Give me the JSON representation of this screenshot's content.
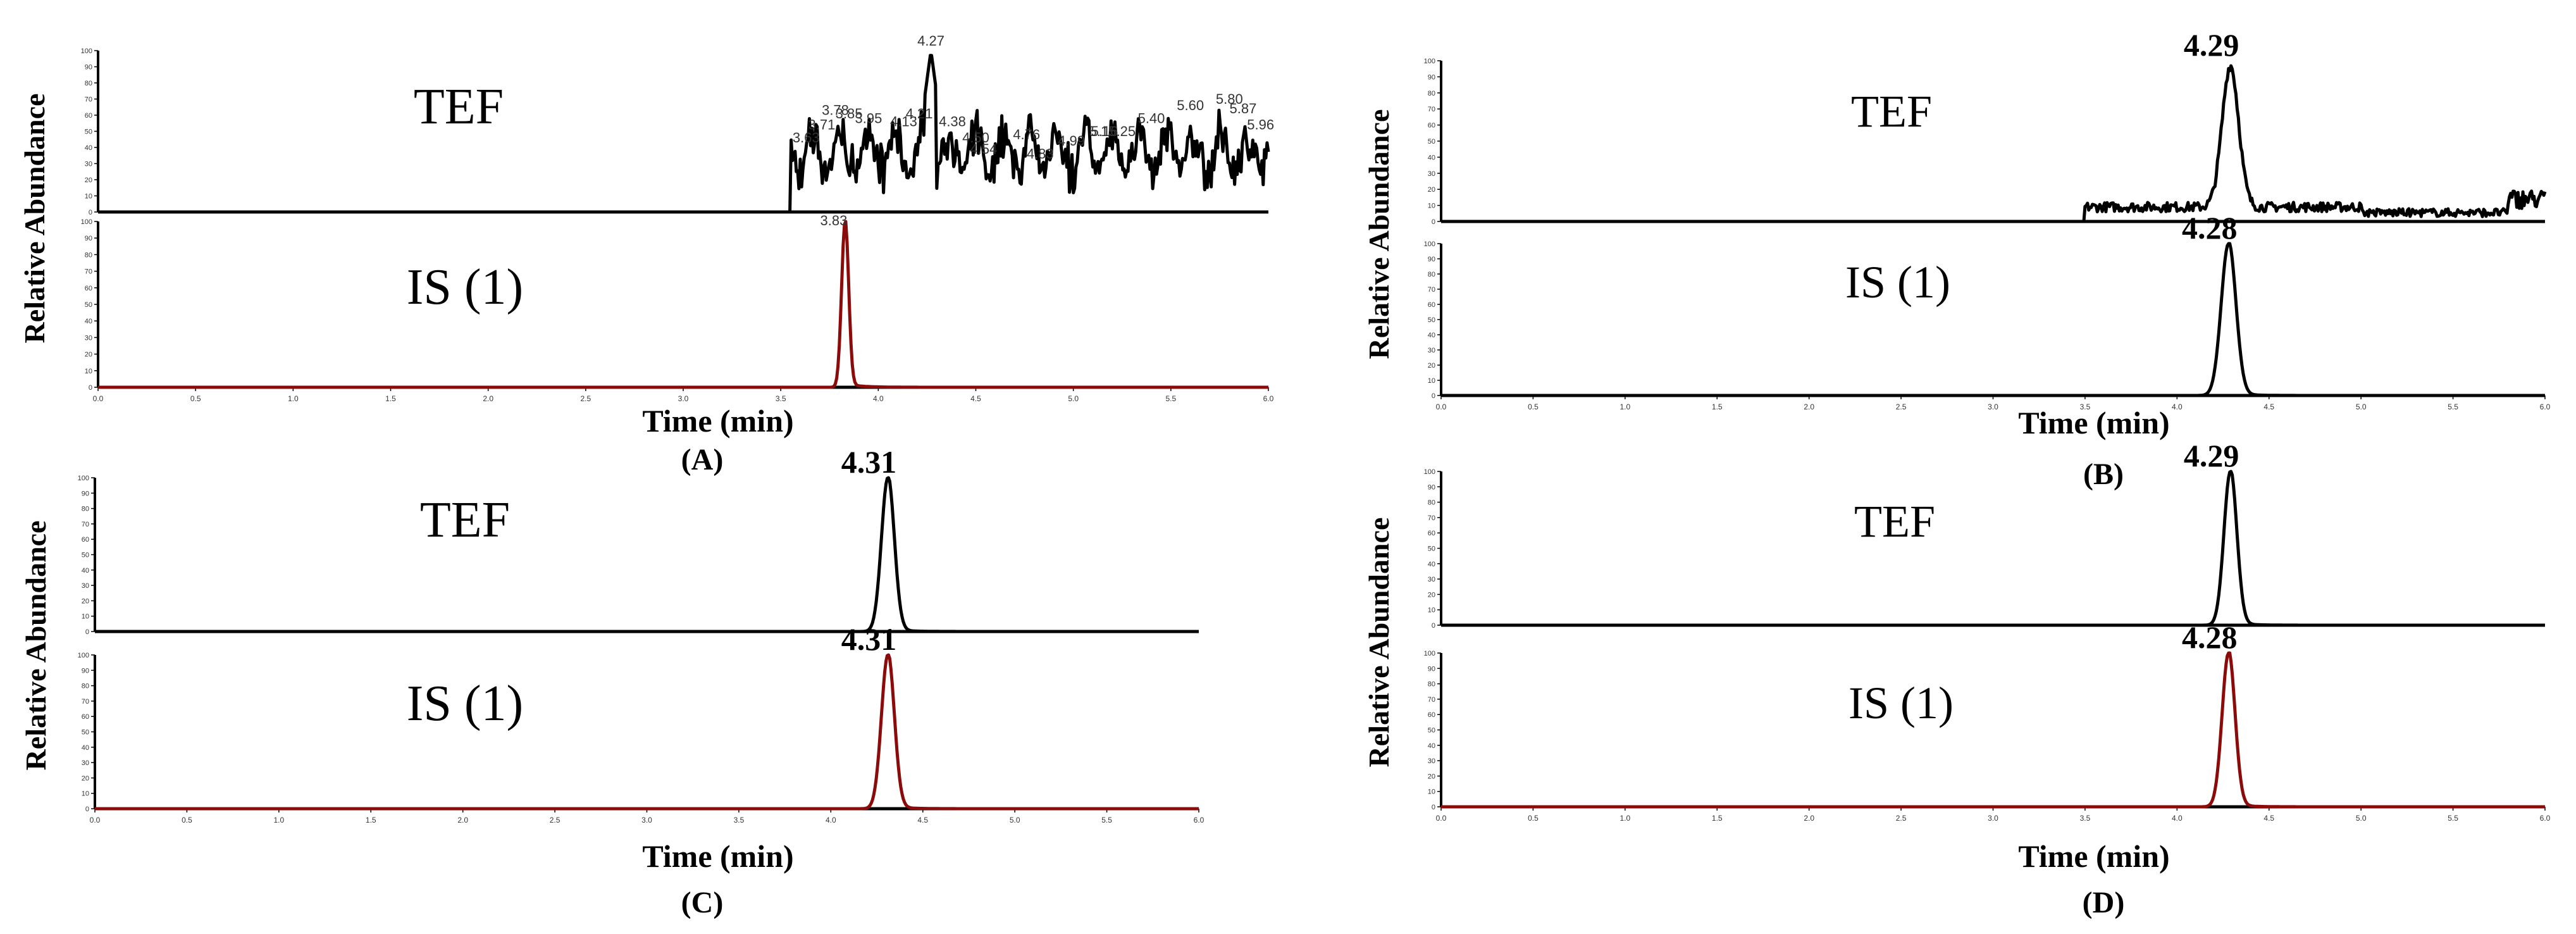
{
  "figure_type": "LC-MS/MS chromatograms",
  "colors": {
    "analyte_trace": "#000000",
    "is_trace": "#8b0a0a",
    "axis": "#000000",
    "baseline_marker": "#3344cc"
  },
  "chart_data": [
    {
      "panel_label": "(A)",
      "type": "line",
      "xlabel": "Time (min)",
      "ylabel": "Relative Abundance",
      "xlim": [
        0,
        6
      ],
      "ylim": [
        0,
        100
      ],
      "x_ticks": [
        "0.0",
        "0.5",
        "1.0",
        "1.5",
        "2.0",
        "2.5",
        "3.0",
        "3.5",
        "4.0",
        "4.5",
        "5.0",
        "5.5",
        "6.0"
      ],
      "y_ticks": [
        "0",
        "10",
        "20",
        "30",
        "40",
        "50",
        "60",
        "70",
        "80",
        "90",
        "100"
      ],
      "series": [
        {
          "name": "TEF",
          "profile": "noisy",
          "onset": 3.55,
          "peak_rt": 4.27,
          "peak_labels": [
            "3.63",
            "3.71",
            "3.78",
            "3.85",
            "3.95",
            "4.13",
            "4.21",
            "4.27",
            "4.38",
            "4.50",
            "4.54",
            "4.76",
            "4.83",
            "4.99",
            "5.15",
            "5.16",
            "5.25",
            "5.40",
            "5.60",
            "5.80",
            "5.87",
            "5.96"
          ],
          "label_x": [
            3.63,
            3.71,
            3.78,
            3.85,
            3.95,
            4.13,
            4.21,
            4.27,
            4.38,
            4.5,
            4.54,
            4.76,
            4.83,
            4.99,
            5.15,
            5.16,
            5.25,
            5.4,
            5.6,
            5.8,
            5.87,
            5.96
          ],
          "label_y": [
            40,
            48,
            57,
            55,
            52,
            50,
            55,
            100,
            50,
            40,
            33,
            42,
            30,
            38,
            44,
            44,
            44,
            52,
            60,
            64,
            58,
            48
          ]
        },
        {
          "name": "IS (1)",
          "profile": "peak",
          "peak_rt": 3.83,
          "width": 0.018,
          "onset": 3.55,
          "peak_labels": [
            "3.83"
          ]
        }
      ]
    },
    {
      "panel_label": "(B)",
      "type": "line",
      "xlabel": "Time (min)",
      "ylabel": "Relative Abundance",
      "xlim": [
        0,
        6
      ],
      "ylim": [
        0,
        100
      ],
      "x_ticks": [
        "0.0",
        "0.5",
        "1.0",
        "1.5",
        "2.0",
        "2.5",
        "3.0",
        "3.5",
        "4.0",
        "4.5",
        "5.0",
        "5.5",
        "6.0"
      ],
      "y_ticks": [
        "0",
        "10",
        "20",
        "30",
        "40",
        "50",
        "60",
        "70",
        "80",
        "90",
        "100"
      ],
      "series": [
        {
          "name": "TEF",
          "profile": "noisy_peak",
          "peak_rt": 4.29,
          "width": 0.045,
          "onset": 3.5,
          "peak_labels": [
            "4.29"
          ]
        },
        {
          "name": "IS (1)",
          "profile": "peak",
          "peak_rt": 4.28,
          "width": 0.04,
          "onset": 3.5,
          "peak_labels": [
            "4.28"
          ]
        }
      ]
    },
    {
      "panel_label": "(C)",
      "type": "line",
      "xlabel": "Time (min)",
      "ylabel": "Relative Abundance",
      "xlim": [
        0,
        6
      ],
      "ylim": [
        0,
        100
      ],
      "x_ticks": [
        "0.0",
        "0.5",
        "1.0",
        "1.5",
        "2.0",
        "2.5",
        "3.0",
        "3.5",
        "4.0",
        "4.5",
        "5.0",
        "5.5",
        "6.0"
      ],
      "y_ticks": [
        "0",
        "10",
        "20",
        "30",
        "40",
        "50",
        "60",
        "70",
        "80",
        "90",
        "100"
      ],
      "series": [
        {
          "name": "TEF",
          "profile": "peak",
          "peak_rt": 4.31,
          "width": 0.035,
          "onset": 3.6,
          "peak_labels": [
            "4.31"
          ]
        },
        {
          "name": "IS (1)",
          "profile": "peak",
          "peak_rt": 4.31,
          "width": 0.035,
          "onset": 3.6,
          "peak_labels": [
            "4.31"
          ]
        }
      ]
    },
    {
      "panel_label": "(D)",
      "type": "line",
      "xlabel": "Time (min)",
      "ylabel": "Relative Abundance",
      "xlim": [
        0,
        6
      ],
      "ylim": [
        0,
        100
      ],
      "x_ticks": [
        "0.0",
        "0.5",
        "1.0",
        "1.5",
        "2.0",
        "2.5",
        "3.0",
        "3.5",
        "4.0",
        "4.5",
        "5.0",
        "5.5",
        "6.0"
      ],
      "y_ticks": [
        "0",
        "10",
        "20",
        "30",
        "40",
        "50",
        "60",
        "70",
        "80",
        "90",
        "100"
      ],
      "series": [
        {
          "name": "TEF",
          "profile": "peak",
          "peak_rt": 4.29,
          "width": 0.035,
          "onset": 3.5,
          "peak_labels": [
            "4.29"
          ]
        },
        {
          "name": "IS (1)",
          "profile": "peak",
          "peak_rt": 4.28,
          "width": 0.035,
          "onset": 3.5,
          "peak_labels": [
            "4.28"
          ]
        }
      ]
    }
  ]
}
